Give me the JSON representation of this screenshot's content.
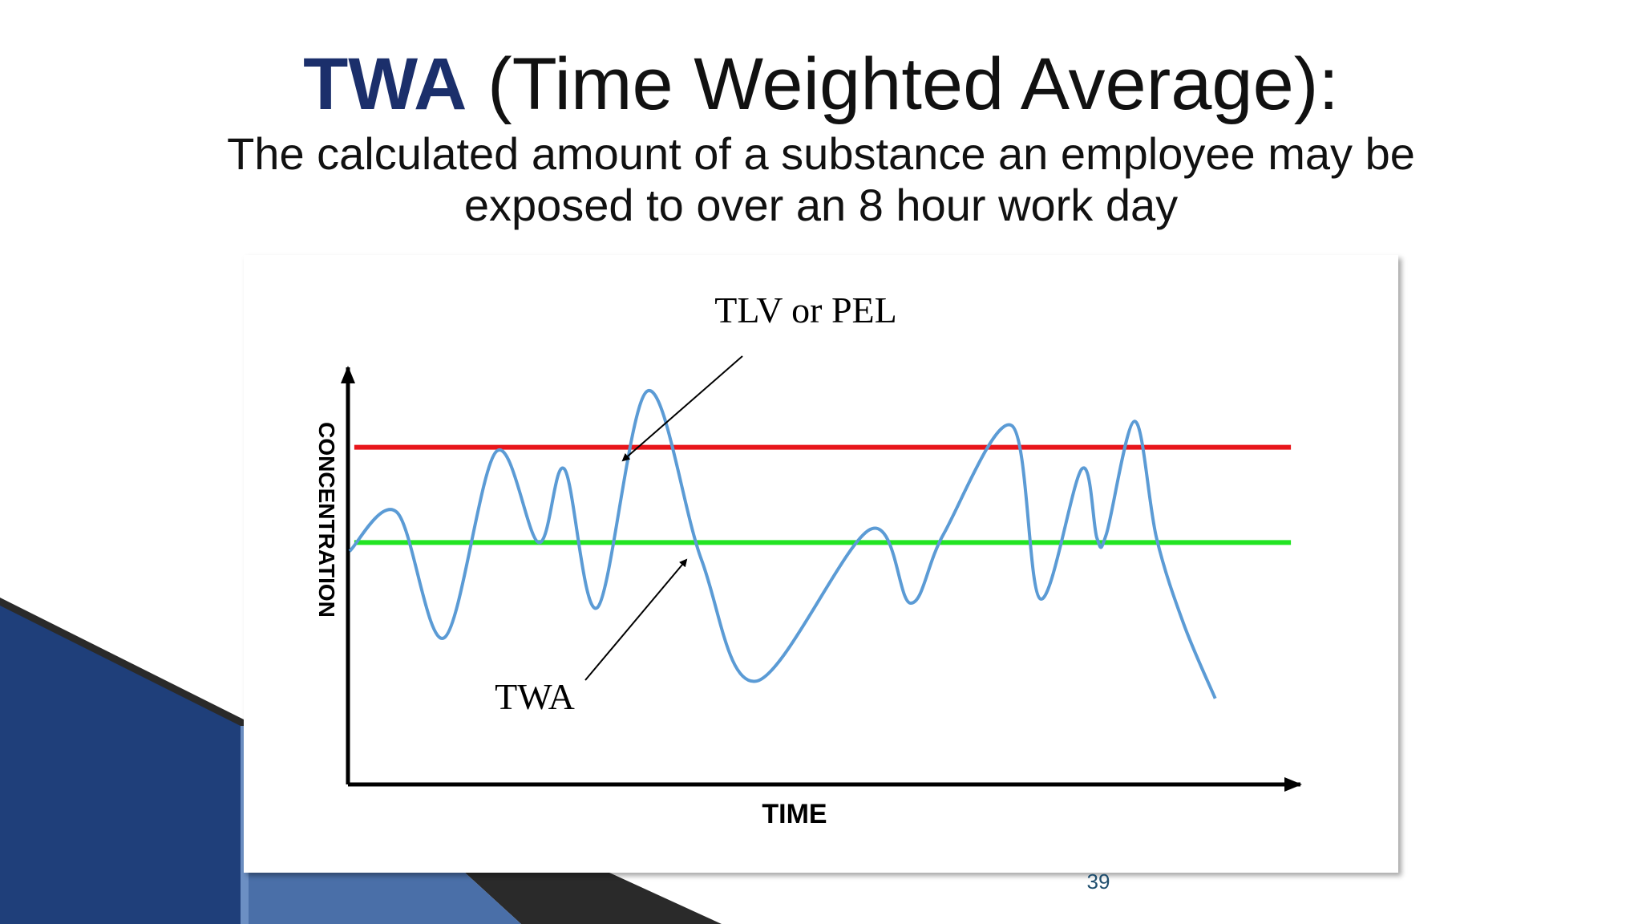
{
  "slide": {
    "title_accent": "TWA",
    "title_rest": " (Time Weighted Average):",
    "subtitle": "The calculated amount of a substance an employee may be exposed to over an 8 hour work day",
    "page_number": "39"
  },
  "colors": {
    "accent": "#1b2f6b",
    "limit_line": "#e8161b",
    "twa_line": "#22e422",
    "concentration_curve": "#5b9bd5",
    "decor_navy": "#1f3f7a",
    "decor_dark": "#2a2a2a"
  },
  "chart_data": {
    "type": "line",
    "title": "",
    "xlabel": "TIME",
    "ylabel": "CONCENTRATION",
    "grid": false,
    "legend": "none",
    "annotations": [
      {
        "text": "TLV or PEL",
        "points_to": "limit-line"
      },
      {
        "text": "TWA",
        "points_to": "twa-line"
      }
    ],
    "x_range": [
      0,
      1
    ],
    "y_range": [
      0,
      1
    ],
    "reference_lines": [
      {
        "name": "TLV or PEL",
        "y": 0.76
      },
      {
        "name": "TWA",
        "y": 0.54
      }
    ],
    "series": [
      {
        "x": [
          0.0,
          0.05,
          0.1,
          0.155,
          0.2,
          0.227,
          0.262,
          0.315,
          0.372,
          0.43,
          0.55,
          0.593,
          0.628,
          0.7,
          0.73,
          0.774,
          0.79,
          0.8,
          0.83,
          0.853,
          0.882,
          0.915
        ],
        "y": [
          0.52,
          0.61,
          0.32,
          0.75,
          0.54,
          0.71,
          0.39,
          0.89,
          0.5,
          0.22,
          0.57,
          0.4,
          0.56,
          0.81,
          0.41,
          0.71,
          0.55,
          0.56,
          0.82,
          0.55,
          0.35,
          0.18
        ]
      }
    ]
  }
}
